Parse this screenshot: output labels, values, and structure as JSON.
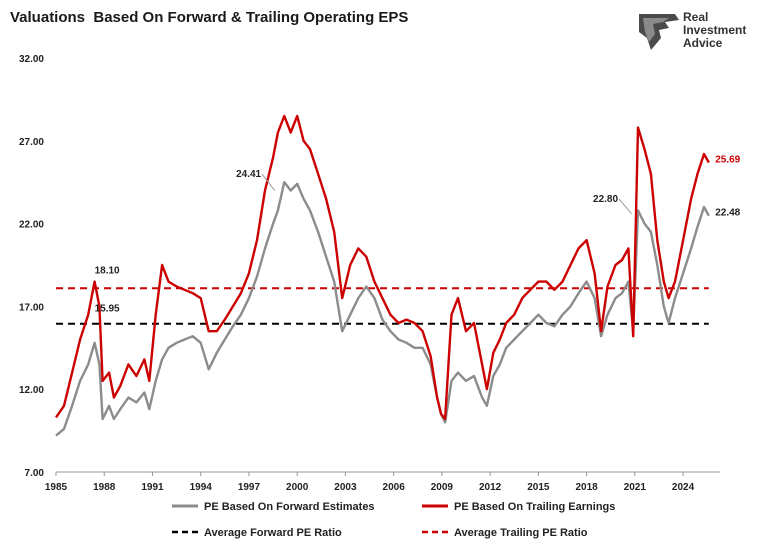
{
  "title": "Valuations  Based On Forward & Trailing Operating EPS",
  "brand": {
    "line1": "Real",
    "line2": "Investment",
    "line3": "Advice",
    "icon": "eagle-head-icon"
  },
  "colors": {
    "forward": "#8c8c8c",
    "trailing": "#cc0000",
    "avg_forward": "#000000",
    "avg_trailing": "#cc0000"
  },
  "chart_data": {
    "type": "line",
    "title": "Valuations  Based On Forward & Trailing Operating EPS",
    "xlabel": "",
    "ylabel": "",
    "xlim": [
      1985,
      2025.8
    ],
    "ylim": [
      7,
      32
    ],
    "yticks": [
      7,
      12,
      17,
      22,
      27,
      32
    ],
    "ytick_labels": [
      "7.00",
      "12.00",
      "17.00",
      "22.00",
      "27.00",
      "32.00"
    ],
    "xticks": [
      1985,
      1988,
      1991,
      1994,
      1997,
      2000,
      2003,
      2006,
      2009,
      2012,
      2015,
      2018,
      2021,
      2024
    ],
    "xtick_labels": [
      "1985",
      "1988",
      "1991",
      "1994",
      "1997",
      "2000",
      "2003",
      "2006",
      "2009",
      "2012",
      "2015",
      "2018",
      "2021",
      "2024"
    ],
    "grid": false,
    "legend_position": "bottom",
    "series": [
      {
        "name": "PE Based On Forward Estimates",
        "style": "solid",
        "x": [
          1985,
          1985.5,
          1986,
          1986.5,
          1987,
          1987.4,
          1987.7,
          1987.9,
          1988.3,
          1988.6,
          1989,
          1989.5,
          1990,
          1990.5,
          1990.8,
          1991.2,
          1991.6,
          1992,
          1992.5,
          1993,
          1993.5,
          1994,
          1994.5,
          1995,
          1995.5,
          1996,
          1996.5,
          1997,
          1997.5,
          1998,
          1998.5,
          1998.8,
          1999.2,
          1999.6,
          2000,
          2000.4,
          2000.8,
          2001.3,
          2001.8,
          2002.3,
          2002.8,
          2003.3,
          2003.8,
          2004.3,
          2004.8,
          2005.3,
          2005.8,
          2006.3,
          2006.8,
          2007.3,
          2007.8,
          2008.3,
          2008.7,
          2008.95,
          2009.2,
          2009.6,
          2010,
          2010.5,
          2011,
          2011.5,
          2011.8,
          2012.2,
          2012.6,
          2013,
          2013.5,
          2014,
          2014.5,
          2015,
          2015.5,
          2016,
          2016.5,
          2017,
          2017.5,
          2018,
          2018.5,
          2018.9,
          2019.3,
          2019.8,
          2020.2,
          2020.6,
          2020.9,
          2021.2,
          2021.6,
          2022,
          2022.4,
          2022.8,
          2023.1,
          2023.5,
          2024,
          2024.5,
          2024.9,
          2025.3,
          2025.6
        ],
        "y": [
          9.2,
          9.6,
          11.0,
          12.5,
          13.5,
          14.8,
          13.5,
          10.2,
          11.0,
          10.2,
          10.8,
          11.5,
          11.2,
          11.8,
          10.8,
          12.5,
          13.8,
          14.5,
          14.8,
          15.0,
          15.2,
          14.8,
          13.2,
          14.2,
          15.0,
          15.8,
          16.5,
          17.5,
          18.8,
          20.5,
          22.0,
          22.8,
          24.5,
          24.0,
          24.4,
          23.5,
          22.8,
          21.5,
          20.0,
          18.5,
          15.5,
          16.5,
          17.5,
          18.2,
          17.5,
          16.2,
          15.5,
          15.0,
          14.8,
          14.5,
          14.5,
          13.5,
          11.5,
          10.5,
          10.0,
          12.5,
          13.0,
          12.5,
          12.8,
          11.5,
          11.0,
          12.8,
          13.5,
          14.5,
          15.0,
          15.5,
          16.0,
          16.5,
          16.0,
          15.8,
          16.5,
          17.0,
          17.8,
          18.5,
          17.5,
          15.2,
          16.5,
          17.5,
          17.8,
          18.5,
          15.5,
          22.8,
          22.0,
          21.5,
          19.5,
          17.0,
          16.0,
          17.5,
          19.0,
          20.5,
          21.8,
          23.0,
          22.48
        ]
      },
      {
        "name": "PE Based On Trailing Earnings",
        "style": "solid",
        "x": [
          1985,
          1985.5,
          1986,
          1986.5,
          1987,
          1987.4,
          1987.7,
          1987.9,
          1988.3,
          1988.6,
          1989,
          1989.5,
          1990,
          1990.5,
          1990.8,
          1991.2,
          1991.6,
          1992,
          1992.5,
          1993,
          1993.5,
          1994,
          1994.5,
          1995,
          1995.5,
          1996,
          1996.5,
          1997,
          1997.5,
          1998,
          1998.5,
          1998.8,
          1999.2,
          1999.6,
          2000,
          2000.4,
          2000.8,
          2001.3,
          2001.8,
          2002.3,
          2002.8,
          2003.3,
          2003.8,
          2004.3,
          2004.8,
          2005.3,
          2005.8,
          2006.3,
          2006.8,
          2007.3,
          2007.8,
          2008.3,
          2008.7,
          2008.95,
          2009.2,
          2009.6,
          2010,
          2010.5,
          2011,
          2011.5,
          2011.8,
          2012.2,
          2012.6,
          2013,
          2013.5,
          2014,
          2014.5,
          2015,
          2015.5,
          2016,
          2016.5,
          2017,
          2017.5,
          2018,
          2018.5,
          2018.9,
          2019.3,
          2019.8,
          2020.2,
          2020.6,
          2020.9,
          2021.2,
          2021.6,
          2022,
          2022.4,
          2022.8,
          2023.1,
          2023.5,
          2024,
          2024.5,
          2024.9,
          2025.3,
          2025.6
        ],
        "y": [
          10.3,
          11.0,
          13.0,
          15.0,
          16.5,
          18.5,
          17.0,
          12.5,
          13.0,
          11.5,
          12.2,
          13.5,
          12.8,
          13.8,
          12.5,
          16.5,
          19.5,
          18.5,
          18.2,
          18.0,
          17.8,
          17.5,
          15.5,
          15.5,
          16.2,
          17.0,
          17.8,
          19.0,
          21.0,
          24.0,
          26.0,
          27.5,
          28.5,
          27.5,
          28.5,
          27.0,
          26.5,
          25.0,
          23.5,
          21.5,
          17.5,
          19.5,
          20.5,
          20.0,
          18.5,
          17.5,
          16.5,
          16.0,
          16.2,
          16.0,
          15.5,
          14.0,
          11.5,
          10.5,
          10.2,
          16.5,
          17.5,
          15.5,
          16.0,
          13.5,
          12.0,
          14.2,
          15.0,
          16.0,
          16.5,
          17.5,
          18.0,
          18.5,
          18.5,
          18.0,
          18.5,
          19.5,
          20.5,
          21.0,
          19.0,
          15.5,
          18.2,
          19.5,
          19.8,
          20.5,
          15.2,
          27.8,
          26.5,
          25.0,
          21.0,
          18.5,
          17.5,
          18.5,
          21.0,
          23.5,
          25.0,
          26.2,
          25.69
        ]
      },
      {
        "name": "Average Forward PE Ratio",
        "style": "dashed",
        "x": [
          1985,
          2025.6
        ],
        "y": [
          15.95,
          15.95
        ]
      },
      {
        "name": "Average Trailing PE Ratio",
        "style": "dashed",
        "x": [
          1985,
          2025.6
        ],
        "y": [
          18.1,
          18.1
        ]
      }
    ],
    "annotations": [
      {
        "text": "18.10",
        "x": 1987.4,
        "y": 19.0,
        "color": "#222222"
      },
      {
        "text": "15.95",
        "x": 1987.4,
        "y": 16.7,
        "color": "#222222"
      },
      {
        "text": "24.41",
        "x": 1996.2,
        "y": 24.8,
        "color": "#222222",
        "pointer_to": [
          1998.6,
          24.0
        ]
      },
      {
        "text": "22.80",
        "x": 2018.4,
        "y": 23.3,
        "color": "#222222",
        "pointer_to": [
          2020.8,
          22.6
        ]
      },
      {
        "text": "25.69",
        "x": 2026.0,
        "y": 25.69,
        "color": "#cc0000"
      },
      {
        "text": "22.48",
        "x": 2026.0,
        "y": 22.48,
        "color": "#222222"
      }
    ]
  }
}
